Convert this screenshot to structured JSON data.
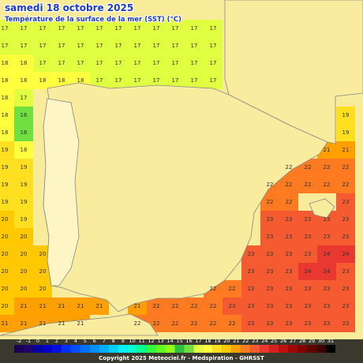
{
  "header": {
    "title": "samedi 18 octobre 2025",
    "subtitle": "Température de la surface de la mer (SST) (°C)"
  },
  "credit": "Copyright 2025 Meteociel.fr - Medspiration - GHRSST",
  "colorbar": {
    "labels": [
      -2,
      -1,
      0,
      1,
      2,
      3,
      4,
      5,
      6,
      7,
      8,
      9,
      10,
      11,
      12,
      13,
      14,
      15,
      16,
      17,
      18,
      19,
      20,
      21,
      22,
      23,
      24,
      25,
      26,
      27,
      28,
      29,
      30,
      31
    ],
    "colors": [
      "#1a0050",
      "#200070",
      "#0000a0",
      "#0000c8",
      "#0010e0",
      "#0030ff",
      "#0050ff",
      "#0070ff",
      "#0090ff",
      "#00b0ff",
      "#00d0ff",
      "#00f0ff",
      "#00ffd0",
      "#00ff90",
      "#30ff40",
      "#60ff20",
      "#90ff20",
      "#30c040",
      "#70e040",
      "#e0ff40",
      "#ffff40",
      "#ffe020",
      "#ffc800",
      "#ffa000",
      "#ff7a20",
      "#f55a30",
      "#e83830",
      "#d82020",
      "#c01010",
      "#a00808",
      "#800000",
      "#600000",
      "#400000",
      "#000000"
    ]
  },
  "sst_grid": [
    [
      17,
      17,
      17,
      17,
      17,
      17,
      17,
      17,
      17,
      17,
      17,
      17,
      null,
      null,
      null,
      null,
      null,
      null,
      null
    ],
    [
      17,
      17,
      17,
      17,
      17,
      17,
      17,
      17,
      17,
      17,
      17,
      17,
      null,
      null,
      null,
      null,
      null,
      null,
      null
    ],
    [
      18,
      18,
      17,
      17,
      17,
      17,
      17,
      17,
      17,
      17,
      17,
      17,
      null,
      null,
      null,
      null,
      null,
      null,
      null
    ],
    [
      18,
      18,
      18,
      18,
      18,
      17,
      17,
      17,
      17,
      17,
      17,
      17,
      null,
      null,
      null,
      null,
      null,
      null,
      null
    ],
    [
      18,
      17,
      null,
      null,
      null,
      null,
      null,
      null,
      null,
      null,
      null,
      null,
      null,
      null,
      null,
      null,
      null,
      null,
      null
    ],
    [
      18,
      16,
      null,
      null,
      null,
      null,
      null,
      null,
      null,
      null,
      null,
      null,
      null,
      null,
      null,
      null,
      null,
      null,
      19
    ],
    [
      18,
      16,
      null,
      null,
      null,
      null,
      null,
      null,
      null,
      null,
      null,
      null,
      null,
      null,
      null,
      null,
      null,
      null,
      19
    ],
    [
      19,
      18,
      null,
      null,
      null,
      null,
      null,
      null,
      null,
      null,
      null,
      null,
      null,
      null,
      null,
      null,
      null,
      21,
      21
    ],
    [
      19,
      19,
      null,
      null,
      null,
      null,
      null,
      null,
      null,
      null,
      null,
      null,
      null,
      null,
      null,
      22,
      22,
      22,
      22
    ],
    [
      19,
      19,
      null,
      null,
      null,
      null,
      null,
      null,
      null,
      null,
      null,
      null,
      null,
      null,
      22,
      22,
      22,
      22,
      22
    ],
    [
      19,
      19,
      null,
      null,
      null,
      null,
      null,
      null,
      null,
      null,
      null,
      null,
      null,
      null,
      22,
      22,
      null,
      null,
      23
    ],
    [
      20,
      19,
      null,
      null,
      null,
      null,
      null,
      null,
      null,
      null,
      null,
      null,
      null,
      null,
      23,
      23,
      23,
      23,
      23
    ],
    [
      20,
      20,
      null,
      null,
      null,
      null,
      null,
      null,
      null,
      null,
      null,
      null,
      null,
      null,
      23,
      23,
      23,
      23,
      23
    ],
    [
      20,
      20,
      20,
      null,
      null,
      null,
      null,
      null,
      null,
      null,
      null,
      null,
      null,
      23,
      23,
      23,
      23,
      24,
      24
    ],
    [
      20,
      20,
      20,
      null,
      null,
      null,
      null,
      null,
      null,
      null,
      null,
      null,
      null,
      23,
      23,
      23,
      24,
      24,
      23
    ],
    [
      20,
      20,
      20,
      null,
      null,
      null,
      null,
      null,
      null,
      null,
      null,
      22,
      22,
      23,
      23,
      23,
      23,
      23,
      23
    ],
    [
      20,
      21,
      21,
      21,
      21,
      21,
      null,
      21,
      22,
      22,
      22,
      22,
      23,
      23,
      23,
      23,
      23,
      23,
      23
    ],
    [
      21,
      21,
      21,
      21,
      21,
      null,
      null,
      22,
      22,
      22,
      22,
      22,
      22,
      23,
      23,
      23,
      23,
      23,
      23
    ]
  ]
}
